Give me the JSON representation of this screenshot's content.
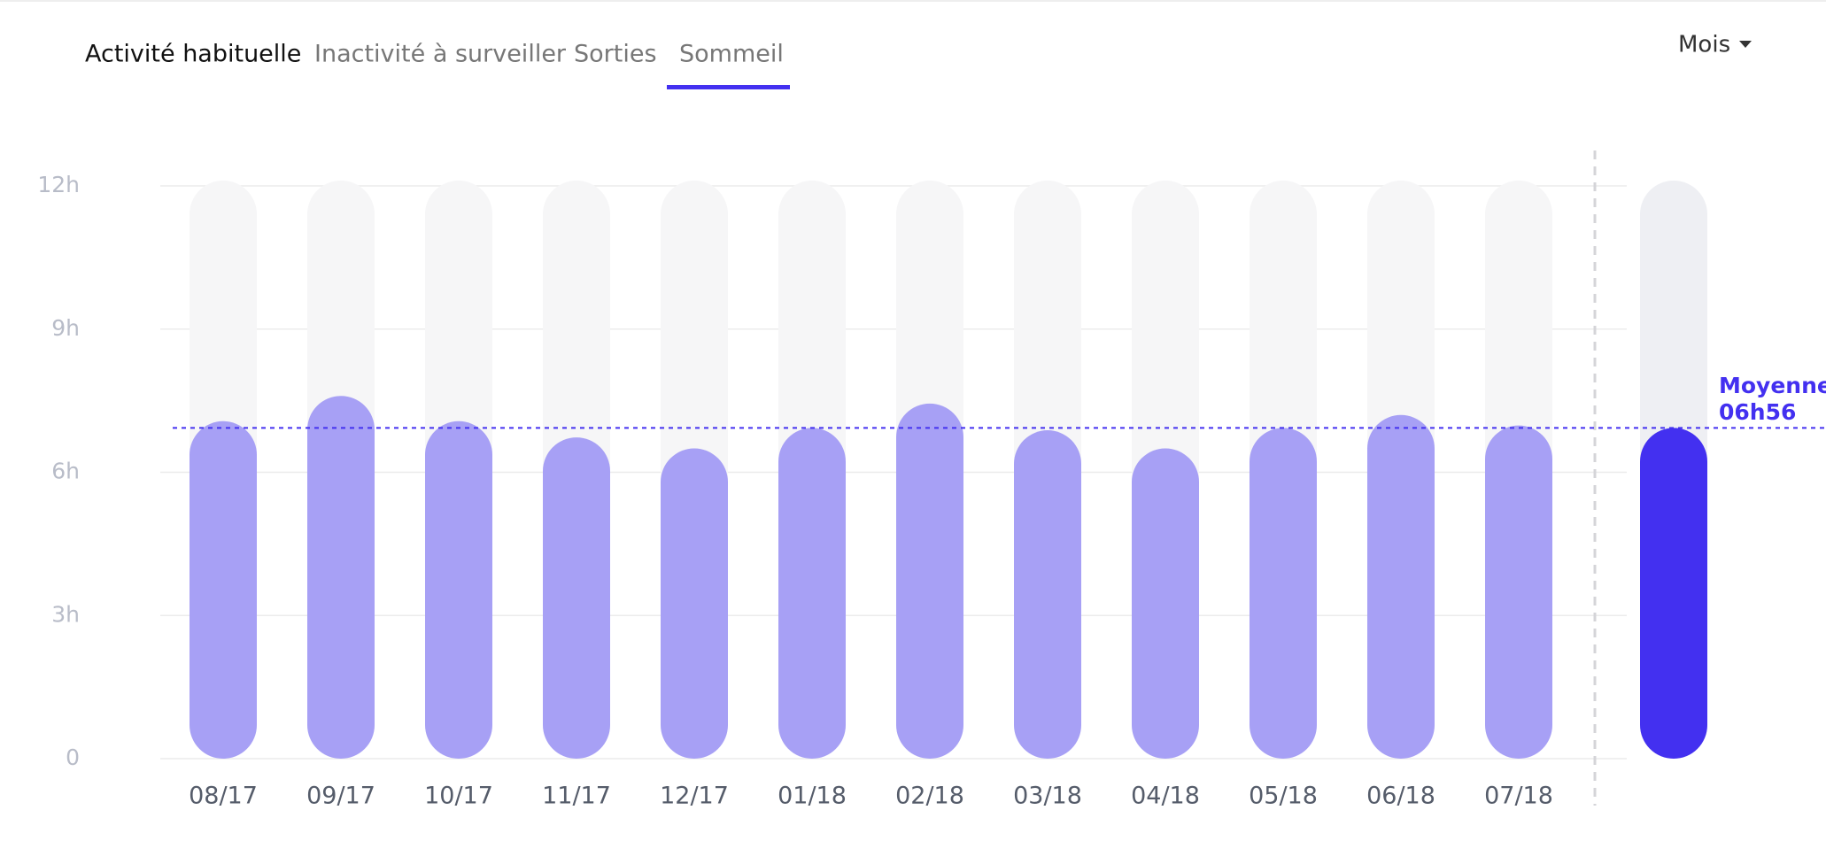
{
  "tabs": [
    "Activité habituelle",
    "Inactivité à surveiller",
    "Sorties",
    "Sommeil"
  ],
  "period_menu": "Mois",
  "chart_data": {
    "type": "bar",
    "categories": [
      "08/17",
      "09/17",
      "10/17",
      "11/17",
      "12/17",
      "01/18",
      "02/18",
      "03/18",
      "04/18",
      "05/18",
      "06/18",
      "07/18"
    ],
    "values": [
      7.07,
      7.6,
      7.07,
      6.73,
      6.5,
      6.93,
      7.44,
      6.88,
      6.5,
      6.93,
      7.2,
      6.98
    ],
    "color": "#a7a0f5",
    "ylim": [
      0,
      12
    ],
    "yticks": [
      {
        "value": 0,
        "label": "0"
      },
      {
        "value": 3,
        "label": "3h"
      },
      {
        "value": 6,
        "label": "6h"
      },
      {
        "value": 9,
        "label": "9h"
      },
      {
        "value": 12,
        "label": "12h"
      }
    ],
    "grid": true,
    "average": {
      "label": "Moyenne",
      "value": 6.93,
      "value_label": "06h56",
      "color": "#4330f0"
    }
  }
}
